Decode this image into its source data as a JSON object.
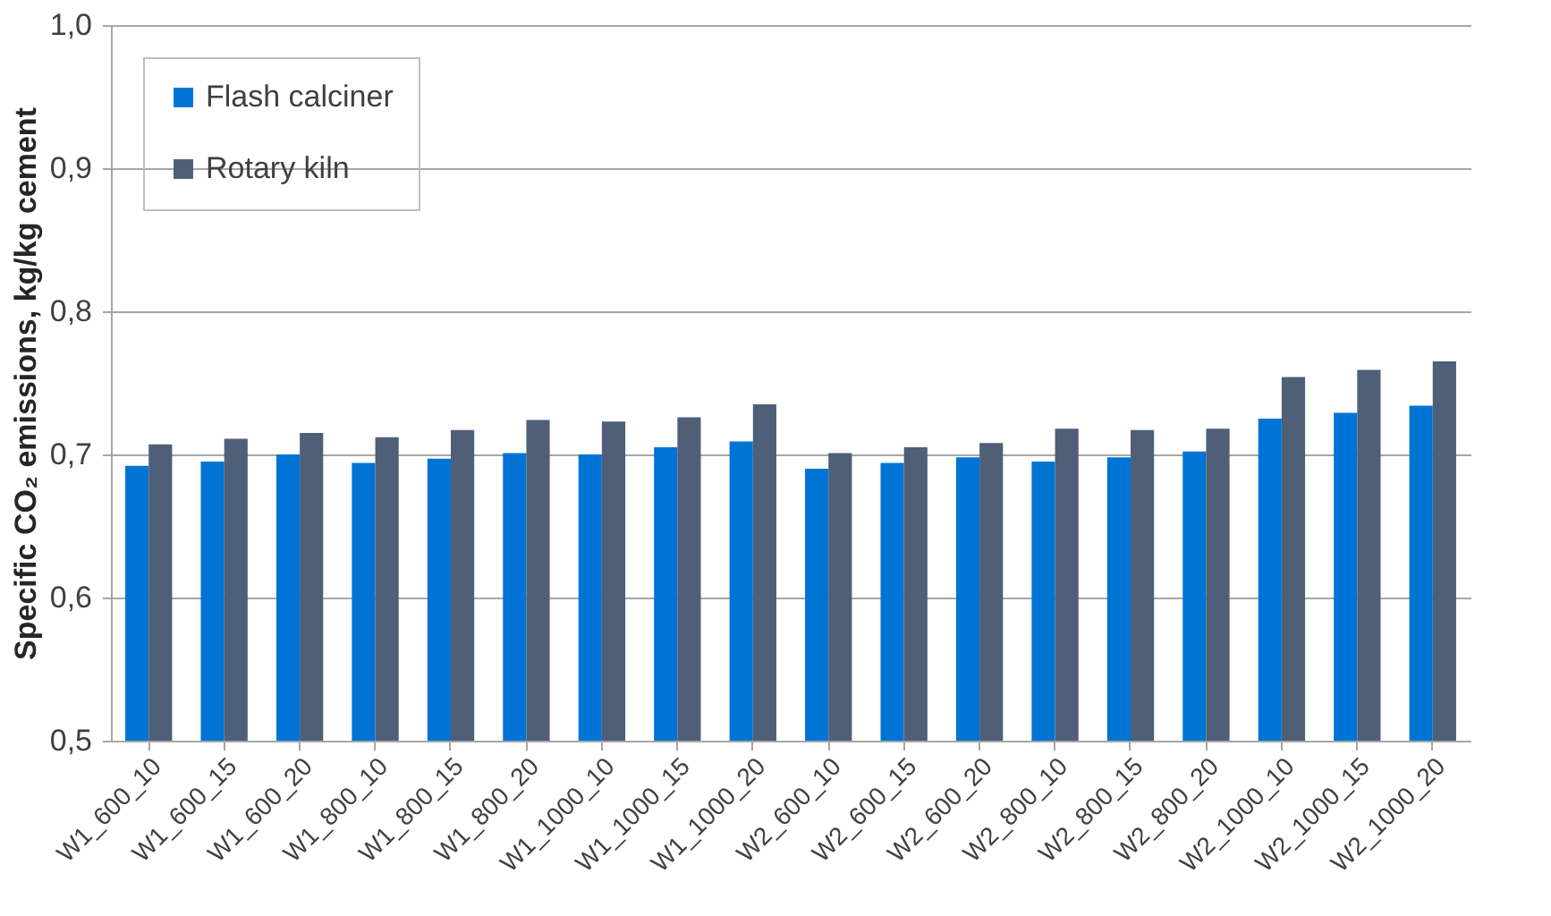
{
  "chart_data": {
    "type": "bar",
    "ylabel": "Specific CO₂ emissions, kg/kg cement",
    "categories": [
      "W1_600_10",
      "W1_600_15",
      "W1_600_20",
      "W1_800_10",
      "W1_800_15",
      "W1_800_20",
      "W1_1000_10",
      "W1_1000_15",
      "W1_1000_20",
      "W2_600_10",
      "W2_600_15",
      "W2_600_20",
      "W2_800_10",
      "W2_800_15",
      "W2_800_20",
      "W2_1000_10",
      "W2_1000_15",
      "W2_1000_20"
    ],
    "series": [
      {
        "name": "Flash calciner",
        "color": "#0074d4",
        "values": [
          0.692,
          0.695,
          0.7,
          0.694,
          0.697,
          0.701,
          0.7,
          0.705,
          0.709,
          0.69,
          0.694,
          0.698,
          0.695,
          0.698,
          0.702,
          0.725,
          0.729,
          0.734
        ]
      },
      {
        "name": "Rotary kiln",
        "color": "#4f5f78",
        "values": [
          0.707,
          0.711,
          0.715,
          0.712,
          0.717,
          0.724,
          0.723,
          0.726,
          0.735,
          0.701,
          0.705,
          0.708,
          0.718,
          0.717,
          0.718,
          0.754,
          0.759,
          0.765
        ]
      }
    ],
    "ylim": [
      0.5,
      1.0
    ],
    "yticks": [
      {
        "value": 0.5,
        "label": "0,5"
      },
      {
        "value": 0.6,
        "label": "0,6"
      },
      {
        "value": 0.7,
        "label": "0,7"
      },
      {
        "value": 0.8,
        "label": "0,8"
      },
      {
        "value": 0.9,
        "label": "0,9"
      },
      {
        "value": 1.0,
        "label": "1,0"
      }
    ],
    "grid": "y",
    "legend": "top left"
  }
}
